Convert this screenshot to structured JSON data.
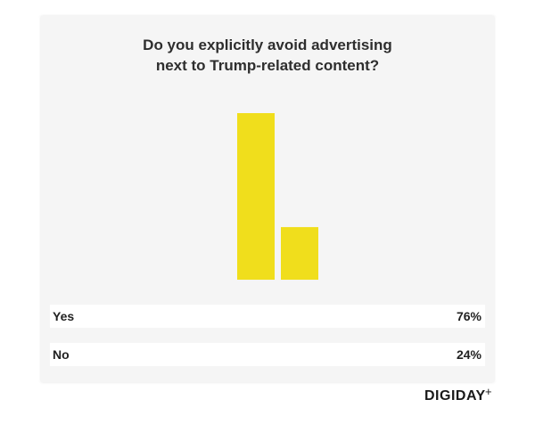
{
  "chart_data": {
    "type": "bar",
    "title_lines": [
      "Do you explicitly avoid advertising",
      "next to Trump-related content?"
    ],
    "categories": [
      "Yes",
      "No"
    ],
    "values": [
      76,
      24
    ],
    "value_labels": [
      "76%",
      "24%"
    ],
    "ylim": [
      0,
      76
    ],
    "bar_color": "#f0de1c"
  },
  "brand": {
    "name": "DIGIDAY",
    "mark": "+"
  }
}
